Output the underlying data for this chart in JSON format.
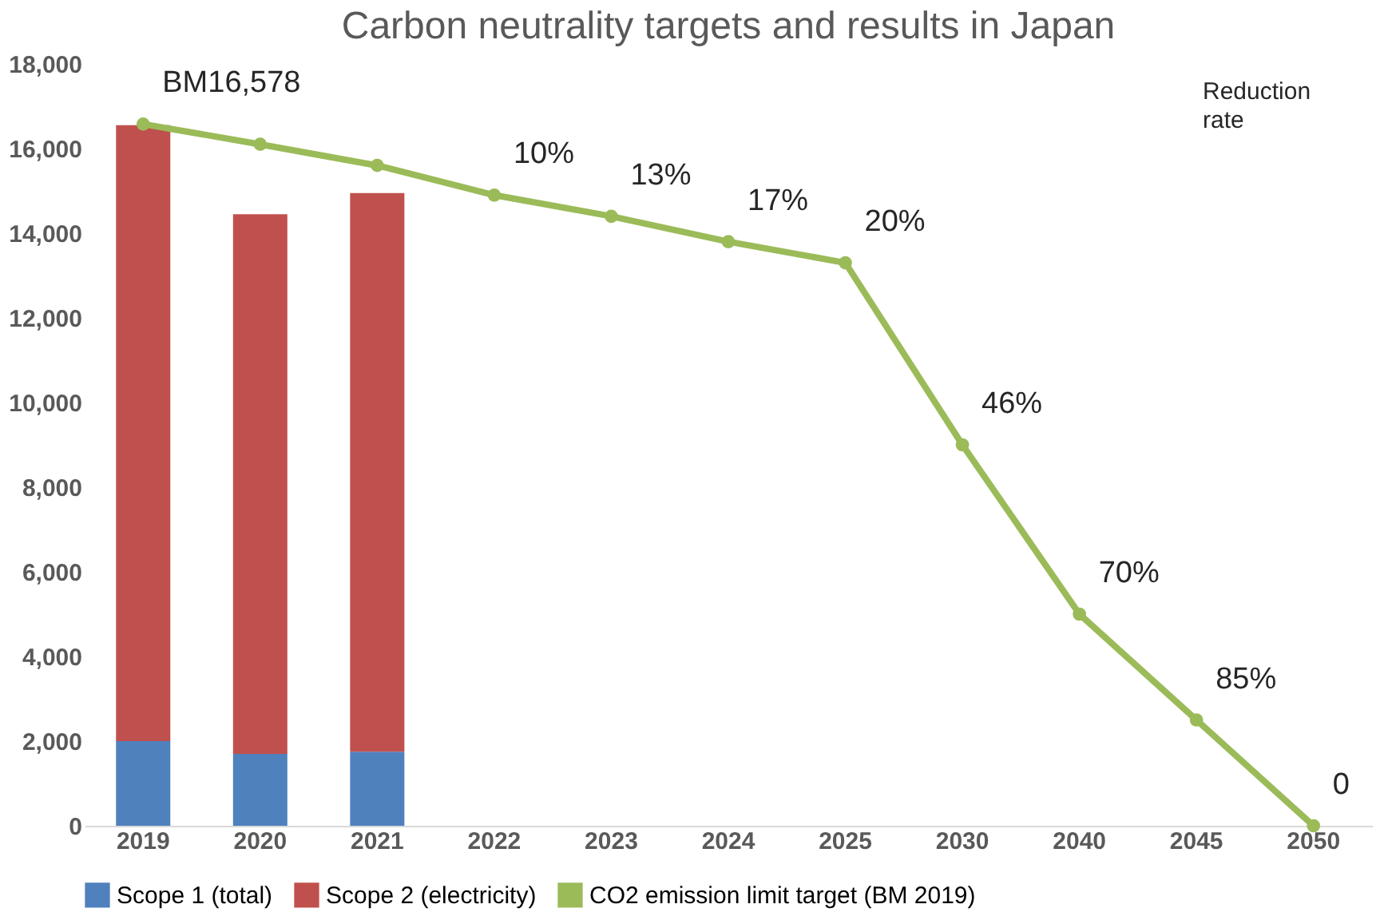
{
  "chart_data": {
    "type": "bar",
    "title": "Carbon neutrality targets and results in Japan",
    "categories": [
      "2019",
      "2020",
      "2021",
      "2022",
      "2023",
      "2024",
      "2025",
      "2030",
      "2040",
      "2045",
      "2050"
    ],
    "stacked": true,
    "series": [
      {
        "name": "Scope 1 (total)",
        "color": "#4f81bd",
        "values": [
          2000,
          1700,
          1750,
          null,
          null,
          null,
          null,
          null,
          null,
          null,
          null
        ]
      },
      {
        "name": "Scope 2 (electricity)",
        "color": "#c0504d",
        "values": [
          14550,
          12750,
          13200,
          null,
          null,
          null,
          null,
          null,
          null,
          null,
          null
        ]
      },
      {
        "name": "CO2 emission limit target (BM 2019)",
        "type": "line",
        "color": "#9bbb59",
        "marker": "circle",
        "values": [
          16578,
          16100,
          15600,
          14900,
          14400,
          13800,
          13300,
          9000,
          5000,
          2500,
          0
        ]
      }
    ],
    "ylim": [
      0,
      18000
    ],
    "yticks": [
      {
        "value": 0,
        "label": "0"
      },
      {
        "value": 2000,
        "label": "2,000"
      },
      {
        "value": 4000,
        "label": "4,000"
      },
      {
        "value": 6000,
        "label": "6,000"
      },
      {
        "value": 8000,
        "label": "8,000"
      },
      {
        "value": 10000,
        "label": "10,000"
      },
      {
        "value": 12000,
        "label": "12,000"
      },
      {
        "value": 14000,
        "label": "14,000"
      },
      {
        "value": 16000,
        "label": "16,000"
      },
      {
        "value": 18000,
        "label": "18,000"
      }
    ],
    "grid": false,
    "legend": "bottom",
    "annotations": [
      "Reduction rate",
      {
        "text": "BM16,578",
        "x": "2019",
        "y": 16578
      },
      {
        "text": "10%",
        "x": "2022",
        "y": 14900
      },
      {
        "text": "13%",
        "x": "2023",
        "y": 14400
      },
      {
        "text": "17%",
        "x": "2024",
        "y": 13800
      },
      {
        "text": "20%",
        "x": "2025",
        "y": 13300
      },
      {
        "text": "46%",
        "x": "2030",
        "y": 9000
      },
      {
        "text": "70%",
        "x": "2040",
        "y": 5000
      },
      {
        "text": "85%",
        "x": "2045",
        "y": 2500
      },
      {
        "text": "0",
        "x": "2050",
        "y": 0
      }
    ]
  }
}
